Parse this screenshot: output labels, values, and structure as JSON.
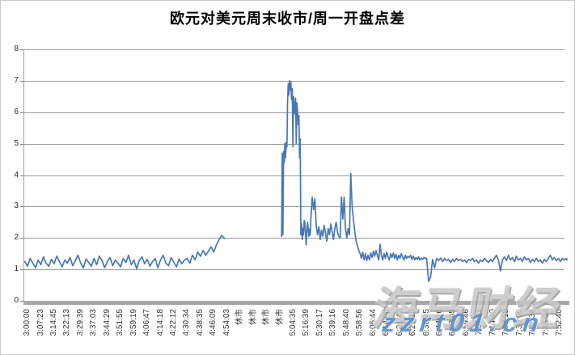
{
  "title": "欧元对美元周末收市/周一开盘点差",
  "watermarks": {
    "brand": "海马财经",
    "site": "zzrt01.cn"
  },
  "colors": {
    "line": "#4878b4",
    "grid": "#9a9a9a",
    "axis": "#a8a8a8",
    "tick_label": "#333333",
    "watermark_gray": "#c6c6c6",
    "watermark_blue": "#3e7ec6"
  },
  "chart_data": {
    "type": "line",
    "title": "欧元对美元周末收市/周一开盘点差",
    "xlabel": "",
    "ylabel": "",
    "ylim": [
      0,
      8
    ],
    "yticks": [
      0,
      1,
      2,
      3,
      4,
      5,
      6,
      7,
      8
    ],
    "grid": "horizontal",
    "legend": "none",
    "x_labels": [
      "3:00:00",
      "3:07:23",
      "3:14:45",
      "3:22:13",
      "3:29:39",
      "3:37:03",
      "3:44:29",
      "3:51:55",
      "3:59:19",
      "4:06:47",
      "4:14:18",
      "4:22:12",
      "4:30:34",
      "4:38:35",
      "4:46:09",
      "4:54:03",
      "休市",
      "休市",
      "休市",
      "休市",
      "5:04:35",
      "5:16:39",
      "5:30:17",
      "5:39:16",
      "5:48:40",
      "5:58:56",
      "6:06:44",
      "6:14:08",
      "6:21:43",
      "6:29:10",
      "6:36:45",
      "6:44:26",
      "6:52:05",
      "6:59:46",
      "7:07:11",
      "7:14:40",
      "7:22:19",
      "7:30:06",
      "7:37:33",
      "7:45:04",
      "7:52:40"
    ],
    "series": [
      {
        "name": "点差",
        "color": "#4878b4",
        "segments": [
          [
            {
              "start": -0.2,
              "step": 0.2,
              "values": [
                1.25,
                1.1,
                1.35,
                1.2,
                1.05,
                1.3,
                1.15,
                1.4,
                1.2,
                1.1,
                1.32,
                1.18,
                1.42,
                1.25,
                1.08,
                1.3,
                1.2,
                1.38,
                1.12,
                1.28,
                1.45,
                1.2,
                1.05,
                1.33,
                1.22,
                1.1,
                1.35,
                1.15,
                1.42,
                1.28,
                1.05,
                1.25,
                1.38,
                1.12,
                1.3,
                1.2,
                1.08,
                1.35,
                1.22,
                1.45,
                1.15,
                1.3,
                1.02,
                1.28,
                1.4,
                1.18,
                1.32,
                1.1,
                1.25,
                1.35,
                1.05,
                1.3,
                1.45,
                1.2,
                1.12,
                1.38,
                1.22,
                1.08,
                1.33,
                1.18,
                1.3
              ]
            },
            {
              "start": 12.0,
              "step": 0.2,
              "values": [
                1.35,
                1.2,
                1.45,
                1.3,
                1.55,
                1.42,
                1.6,
                1.45,
                1.58,
                1.72,
                1.55,
                1.78,
                1.95,
                2.08,
                1.98
              ]
            }
          ],
          [
            {
              "start": 19.1,
              "step": 0.05,
              "values": [
                2.05,
                4.7,
                2.1,
                4.75,
                4.4,
                5.0,
                4.55,
                5.05,
                4.9,
                6.35,
                6.9,
                6.55,
                7.0,
                6.7,
                6.95,
                6.4,
                6.75,
                4.9,
                6.5,
                6.2,
                5.95,
                6.45,
                5.0,
                6.3,
                6.05,
                5.6,
                5.9,
                4.55,
                5.15,
                2.1,
                2.45,
                1.95,
                2.3,
                2.1,
                2.55,
                2.5,
                2.15,
                1.78,
                2.2,
                2.5,
                2.3,
                2.05,
                2.28,
                2.1
              ]
            },
            {
              "start": 21.3,
              "step": 0.1,
              "values": [
                2.6,
                3.3,
                2.9,
                3.25,
                2.4,
                2.1,
                2.35,
                1.95,
                2.25,
                2.05,
                2.4,
                2.15,
                1.9,
                2.3,
                2.1,
                2.45,
                2.2,
                1.95,
                2.3,
                2.5,
                2.2,
                2.05,
                2.0,
                3.3,
                2.6,
                3.3,
                2.3,
                2.0,
                2.3,
                2.1,
                4.05,
                3.0,
                2.6,
                2.2,
                1.9,
                1.75,
                1.6,
                1.5
              ]
            },
            {
              "start": 25.1,
              "step": 0.1,
              "values": [
                1.35,
                1.55,
                1.3,
                1.5,
                1.28,
                1.45,
                1.3,
                1.52,
                1.38,
                1.58,
                1.42,
                1.6,
                1.45,
                1.3,
                1.8,
                1.45,
                1.3,
                1.5,
                1.35,
                1.55,
                1.4,
                1.3,
                1.5,
                1.38,
                1.52,
                1.35,
                1.48,
                1.3,
                1.45,
                1.35,
                1.5,
                1.4,
                1.3,
                1.45,
                1.35,
                1.42,
                1.38,
                1.45,
                1.32,
                1.42,
                1.3,
                1.38,
                1.32,
                1.4,
                1.3,
                1.36,
                1.32,
                1.38,
                1.35
              ]
            },
            {
              "start": 30.0,
              "step": 0.15,
              "values": [
                1.35,
                0.62,
                0.75,
                1.32,
                1.05,
                1.35,
                1.28,
                1.36,
                1.25,
                1.35,
                1.28,
                1.32,
                1.22,
                1.32,
                1.25,
                1.35,
                1.28,
                1.32,
                1.25,
                1.3,
                1.22,
                1.32,
                1.28,
                1.35,
                1.25,
                1.3,
                1.2,
                1.3,
                1.25,
                1.35,
                1.28,
                1.22,
                1.32,
                1.25,
                1.35,
                1.45,
                1.3,
                0.95,
                1.3,
                1.4,
                1.28,
                1.45,
                1.3,
                1.38,
                1.25,
                1.42,
                1.3,
                1.35,
                1.25,
                1.4,
                1.3,
                1.35,
                1.22,
                1.32,
                1.25,
                1.35,
                1.25,
                1.3,
                1.2,
                1.32,
                1.25,
                1.35,
                1.45,
                1.3,
                1.38,
                1.28,
                1.35,
                1.25,
                1.35,
                1.3,
                1.35,
                1.3
              ]
            }
          ]
        ]
      }
    ]
  }
}
